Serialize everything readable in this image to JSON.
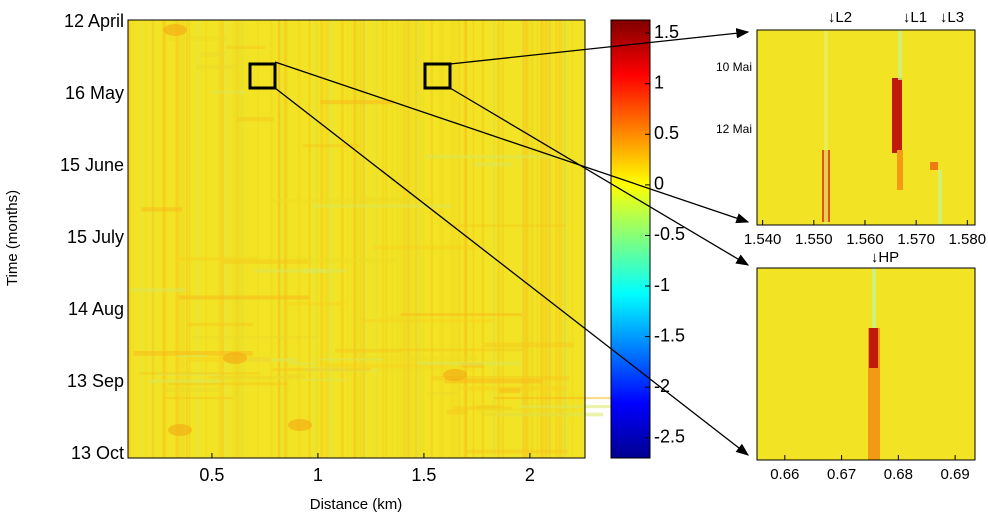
{
  "chart_data": [
    {
      "type": "heatmap",
      "xlabel": "Distance (km)",
      "ylabel": "Time (months)",
      "xlim": [
        0.104,
        2.26
      ],
      "xticks": [
        0.5,
        1,
        1.5,
        2
      ],
      "yticks": [
        "12 April",
        "16 May",
        "15 June",
        "15 July",
        "14 Aug",
        "13 Sep",
        "13 Oct"
      ]
    },
    {
      "type": "colorbar",
      "colormap": "jet",
      "ylim": [
        -2.7,
        1.63
      ],
      "yticks": [
        1.5,
        1,
        0.5,
        0,
        -0.5,
        -1,
        -1.5,
        -2,
        -2.5
      ]
    },
    {
      "type": "heatmap",
      "xlim": [
        1.5389,
        1.5815
      ],
      "xticks": [
        {
          "value": 1.54,
          "label": "1.540"
        },
        {
          "value": 1.55,
          "label": "1.550"
        },
        {
          "value": 1.56,
          "label": "1.560"
        },
        {
          "value": 1.57,
          "label": "1.570"
        },
        {
          "value": 1.58,
          "label": "1.580"
        }
      ],
      "yticks": [
        "10 Mai",
        "12 Mai"
      ],
      "annotations": [
        "↓L2",
        "↓L1",
        "↓L3"
      ]
    },
    {
      "type": "heatmap",
      "xlim": [
        0.6551,
        0.6935
      ],
      "xticks": [
        0.66,
        0.67,
        0.68,
        0.69
      ],
      "annotations": [
        "↓HP"
      ]
    }
  ]
}
